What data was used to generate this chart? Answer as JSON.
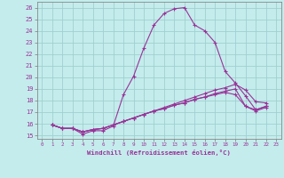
{
  "xlabel": "Windchill (Refroidissement éolien,°C)",
  "xlim": [
    -0.5,
    23.5
  ],
  "ylim": [
    14.7,
    26.5
  ],
  "yticks": [
    15,
    16,
    17,
    18,
    19,
    20,
    21,
    22,
    23,
    24,
    25,
    26
  ],
  "xticks": [
    0,
    1,
    2,
    3,
    4,
    5,
    6,
    7,
    8,
    9,
    10,
    11,
    12,
    13,
    14,
    15,
    16,
    17,
    18,
    19,
    20,
    21,
    22,
    23
  ],
  "bg_color": "#c4ecec",
  "grid_color": "#a0d0d0",
  "line_color": "#993399",
  "series": [
    [
      15.9,
      15.6,
      15.6,
      15.1,
      15.4,
      15.4,
      15.8,
      18.5,
      20.1,
      22.5,
      24.5,
      25.5,
      25.9,
      26.0,
      24.5,
      24.0,
      23.0,
      20.5,
      19.5,
      18.4,
      17.2,
      17.5
    ],
    [
      15.9,
      15.6,
      15.6,
      15.3,
      15.5,
      15.6,
      15.9,
      16.2,
      16.5,
      16.8,
      17.1,
      17.4,
      17.7,
      18.0,
      18.3,
      18.6,
      18.9,
      19.1,
      19.4,
      18.9,
      17.9,
      17.8
    ],
    [
      15.9,
      15.6,
      15.6,
      15.3,
      15.5,
      15.6,
      15.9,
      16.2,
      16.5,
      16.8,
      17.1,
      17.3,
      17.6,
      17.8,
      18.1,
      18.3,
      18.6,
      18.8,
      19.0,
      17.5,
      17.2,
      17.5
    ],
    [
      15.9,
      15.6,
      15.6,
      15.3,
      15.5,
      15.6,
      15.9,
      16.2,
      16.5,
      16.8,
      17.1,
      17.3,
      17.6,
      17.8,
      18.1,
      18.3,
      18.5,
      18.7,
      18.5,
      17.5,
      17.1,
      17.4
    ]
  ],
  "x_start": 1,
  "figsize": [
    3.2,
    2.0
  ],
  "dpi": 100
}
